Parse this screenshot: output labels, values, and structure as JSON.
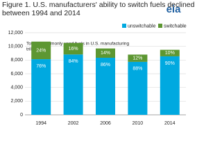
{
  "logo": "eia",
  "chart_data": {
    "type": "stacked_bar",
    "title": [
      "Figure 1. U.S. manufacturers' ability to switch fuels declined",
      "between 1994 and 2014"
    ],
    "y_axis_label": [
      "Total of commonly used fuels in  U.S. manufacturing",
      "trillion Btu"
    ],
    "categories": [
      "1994",
      "2002",
      "2006",
      "2010",
      "2014"
    ],
    "series": [
      {
        "name": "unswitchable",
        "color": "#00a9e0",
        "values": [
          8130,
          8820,
          8340,
          7740,
          8550
        ],
        "share_labels": [
          "76%",
          "84%",
          "86%",
          "88%",
          "90%"
        ]
      },
      {
        "name": "switchable",
        "color": "#5d9732",
        "values": [
          2570,
          1680,
          1360,
          1060,
          950
        ],
        "share_labels": [
          "24%",
          "16%",
          "14%",
          "12%",
          "10%"
        ]
      }
    ],
    "ylim": [
      0,
      12000
    ],
    "yticks": [
      0,
      {
        "value": 2000,
        "label": "2,000"
      },
      {
        "value": 4000,
        "label": "4,000"
      },
      {
        "value": 6000,
        "label": "6,000"
      },
      {
        "value": 8000,
        "label": "8,000"
      },
      {
        "value": 10000,
        "label": "10,000"
      },
      {
        "value": 12000,
        "label": "12,000"
      }
    ],
    "grid": true,
    "legend": "top-right"
  }
}
